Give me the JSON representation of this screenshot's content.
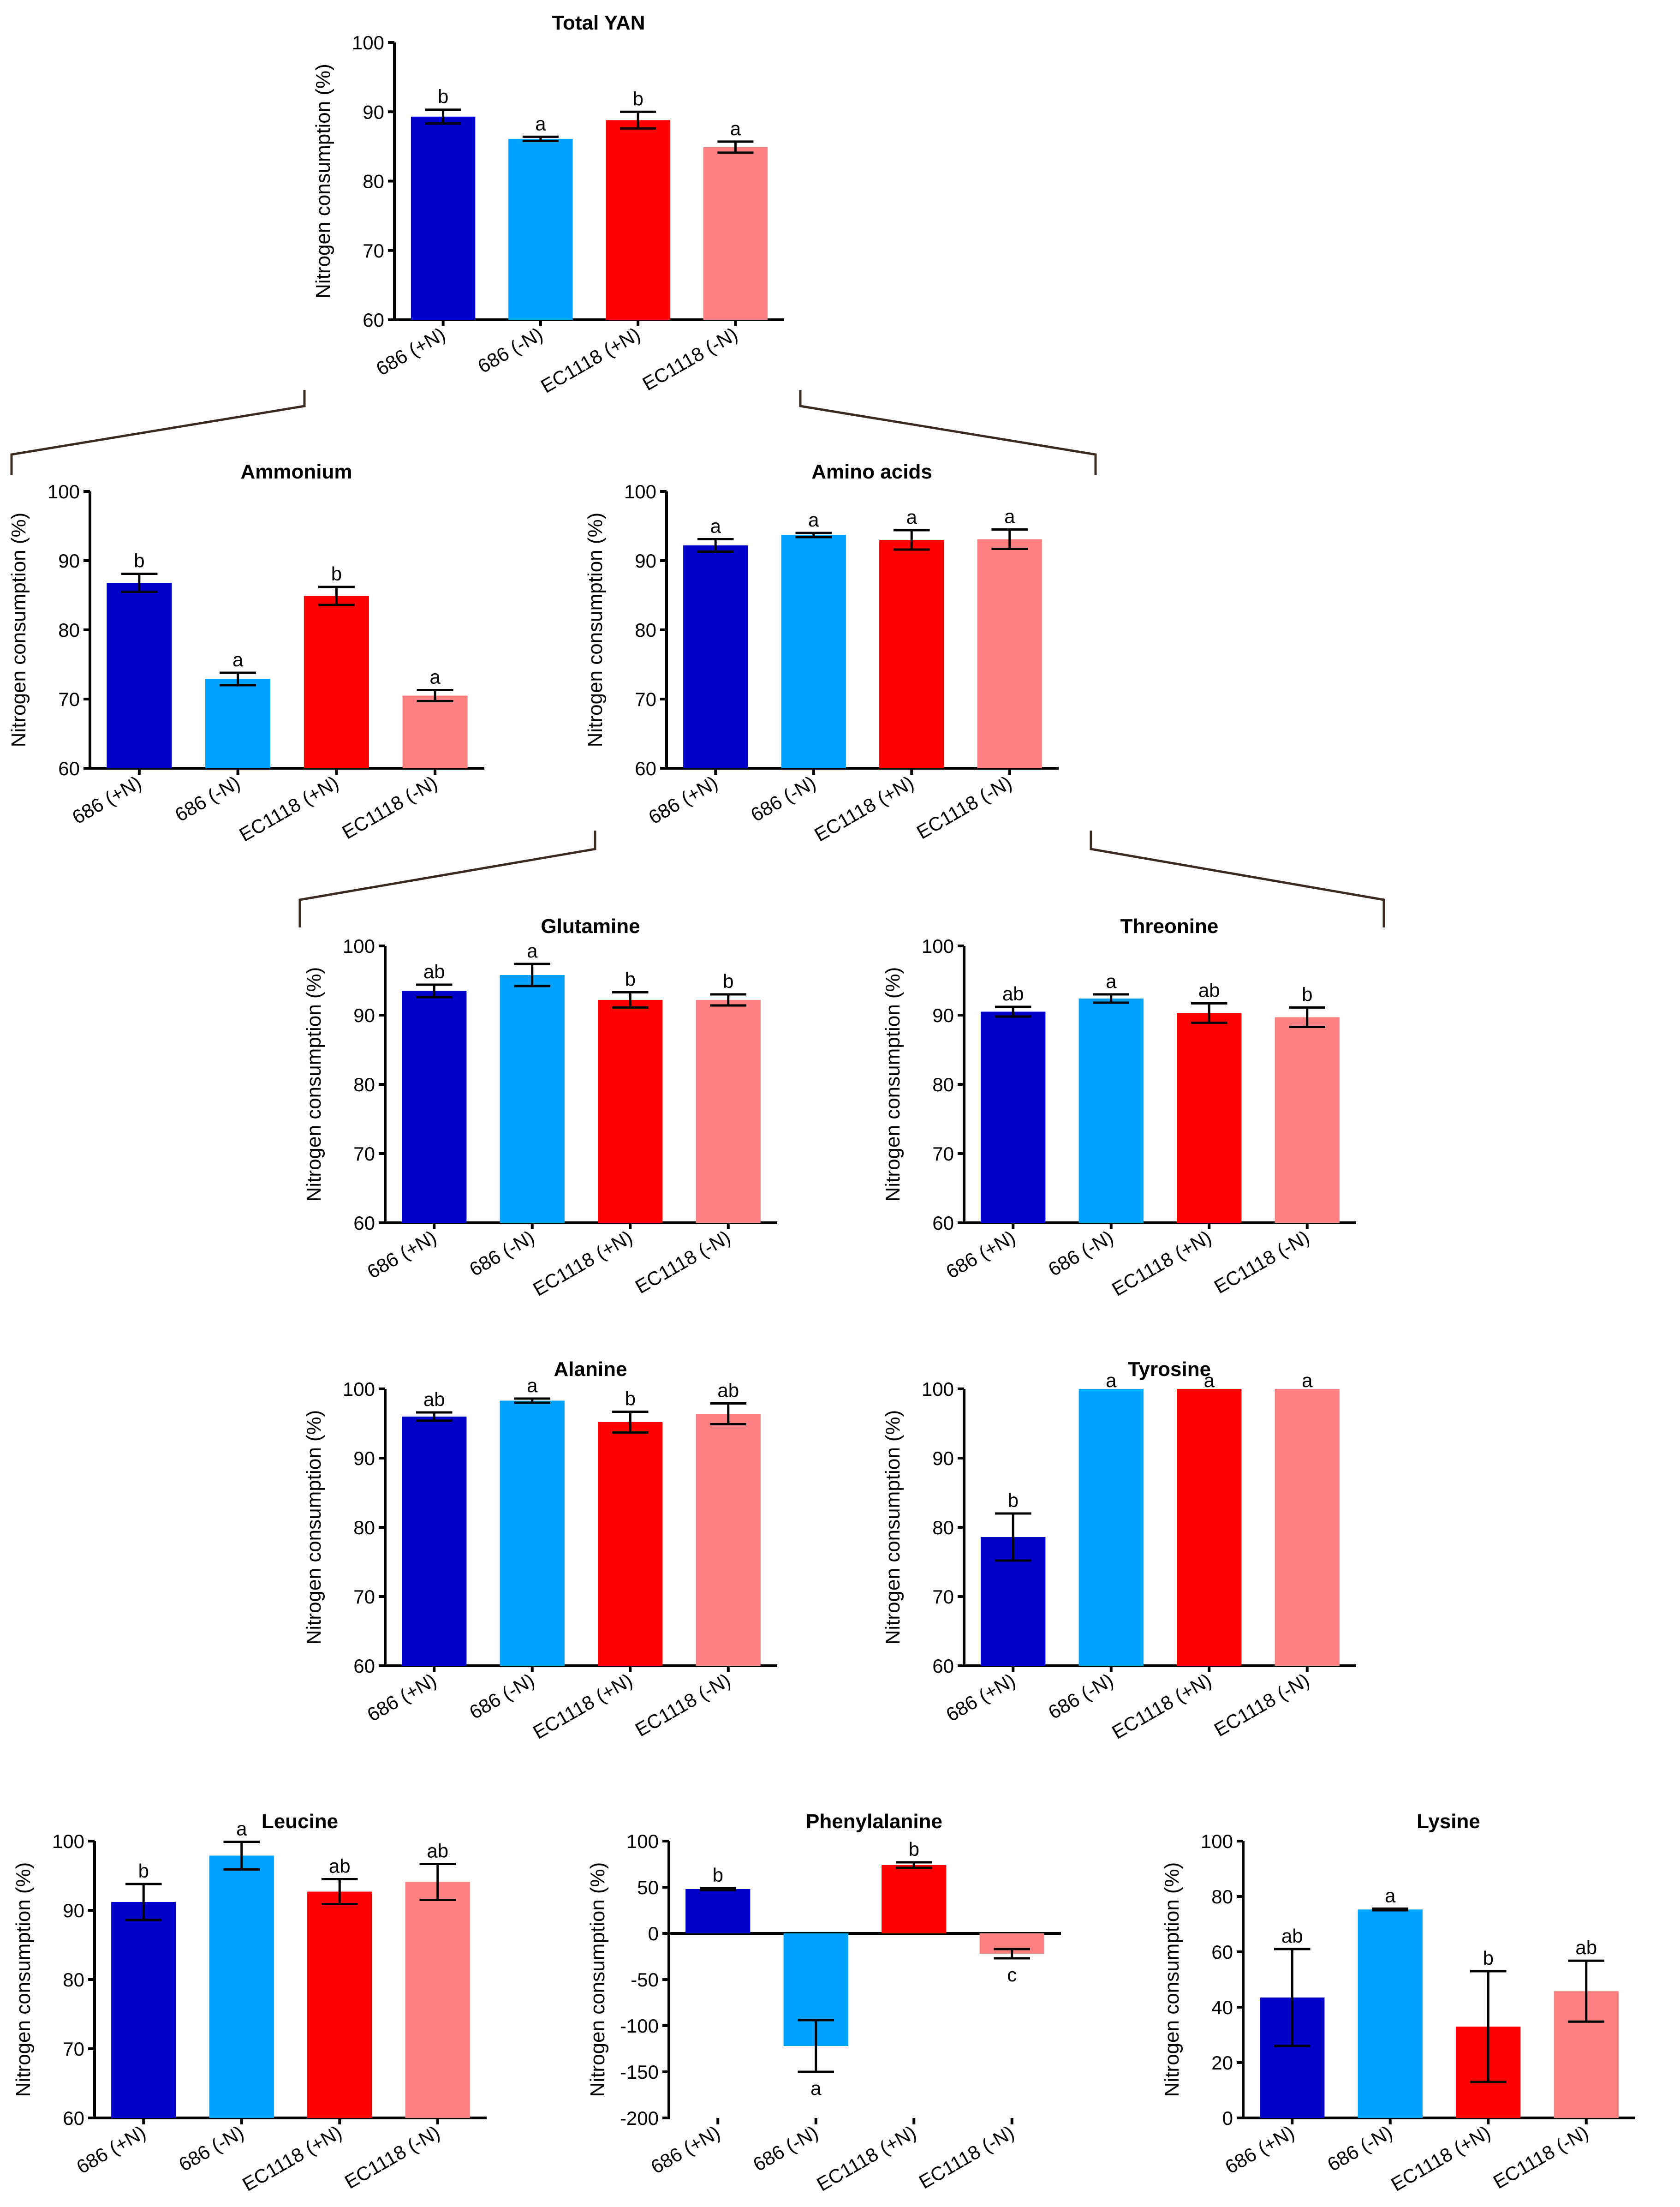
{
  "chart_data": [
    {
      "id": "total_yan",
      "type": "bar",
      "title": "Total YAN",
      "ylabel": "Nitrogen consumption (%)",
      "ylim": [
        60,
        100
      ],
      "yticks": [
        60,
        70,
        80,
        90,
        100
      ],
      "categories": [
        "686 (+N)",
        "686 (-N)",
        "EC1118 (+N)",
        "EC1118 (-N)"
      ],
      "values": [
        89.3,
        86.1,
        88.8,
        84.9
      ],
      "errors": [
        1.0,
        0.3,
        1.2,
        0.8
      ],
      "significance": [
        "b",
        "a",
        "b",
        "a"
      ]
    },
    {
      "id": "ammonium",
      "type": "bar",
      "title": "Ammonium",
      "ylabel": "Nitrogen consumption (%)",
      "ylim": [
        60,
        100
      ],
      "yticks": [
        60,
        70,
        80,
        90,
        100
      ],
      "categories": [
        "686 (+N)",
        "686 (-N)",
        "EC1118 (+N)",
        "EC1118 (-N)"
      ],
      "values": [
        86.8,
        72.9,
        84.9,
        70.5
      ],
      "errors": [
        1.3,
        0.9,
        1.3,
        0.8
      ],
      "significance": [
        "b",
        "a",
        "b",
        "a"
      ]
    },
    {
      "id": "amino_acids",
      "type": "bar",
      "title": "Amino acids",
      "ylabel": "Nitrogen consumption (%)",
      "ylim": [
        60,
        100
      ],
      "yticks": [
        60,
        70,
        80,
        90,
        100
      ],
      "categories": [
        "686 (+N)",
        "686 (-N)",
        "EC1118 (+N)",
        "EC1118 (-N)"
      ],
      "values": [
        92.2,
        93.7,
        93.0,
        93.1
      ],
      "errors": [
        0.9,
        0.3,
        1.4,
        1.4
      ],
      "significance": [
        "a",
        "a",
        "a",
        "a"
      ]
    },
    {
      "id": "glutamine",
      "type": "bar",
      "title": "Glutamine",
      "ylabel": "Nitrogen consumption (%)",
      "ylim": [
        60,
        100
      ],
      "yticks": [
        60,
        70,
        80,
        90,
        100
      ],
      "categories": [
        "686 (+N)",
        "686 (-N)",
        "EC1118 (+N)",
        "EC1118 (-N)"
      ],
      "values": [
        93.5,
        95.8,
        92.2,
        92.2
      ],
      "errors": [
        0.9,
        1.6,
        1.1,
        0.8
      ],
      "significance": [
        "ab",
        "a",
        "b",
        "b"
      ]
    },
    {
      "id": "threonine",
      "type": "bar",
      "title": "Threonine",
      "ylabel": "Nitrogen consumption (%)",
      "ylim": [
        60,
        100
      ],
      "yticks": [
        60,
        70,
        80,
        90,
        100
      ],
      "categories": [
        "686 (+N)",
        "686 (-N)",
        "EC1118 (+N)",
        "EC1118 (-N)"
      ],
      "values": [
        90.5,
        92.4,
        90.3,
        89.7
      ],
      "errors": [
        0.7,
        0.6,
        1.4,
        1.4
      ],
      "significance": [
        "ab",
        "a",
        "ab",
        "b"
      ]
    },
    {
      "id": "alanine",
      "type": "bar",
      "title": "Alanine",
      "ylabel": "Nitrogen consumption (%)",
      "ylim": [
        60,
        100
      ],
      "yticks": [
        60,
        70,
        80,
        90,
        100
      ],
      "categories": [
        "686 (+N)",
        "686 (-N)",
        "EC1118 (+N)",
        "EC1118 (-N)"
      ],
      "values": [
        96.0,
        98.3,
        95.2,
        96.4
      ],
      "errors": [
        0.6,
        0.3,
        1.5,
        1.5
      ],
      "significance": [
        "ab",
        "a",
        "b",
        "ab"
      ]
    },
    {
      "id": "tyrosine",
      "type": "bar",
      "title": "Tyrosine",
      "ylabel": "Nitrogen consumption (%)",
      "ylim": [
        60,
        100
      ],
      "yticks": [
        60,
        70,
        80,
        90,
        100
      ],
      "categories": [
        "686 (+N)",
        "686 (-N)",
        "EC1118 (+N)",
        "EC1118 (-N)"
      ],
      "values": [
        78.6,
        100,
        100,
        100
      ],
      "errors": [
        3.4,
        0,
        0,
        0
      ],
      "significance": [
        "b",
        "a",
        "a",
        "a"
      ]
    },
    {
      "id": "leucine",
      "type": "bar",
      "title": "Leucine",
      "ylabel": "Nitrogen consumption (%)",
      "ylim": [
        60,
        100
      ],
      "yticks": [
        60,
        70,
        80,
        90,
        100
      ],
      "categories": [
        "686 (+N)",
        "686 (-N)",
        "EC1118 (+N)",
        "EC1118 (-N)"
      ],
      "values": [
        91.2,
        97.9,
        92.7,
        94.1
      ],
      "errors": [
        2.6,
        2.0,
        1.8,
        2.6
      ],
      "significance": [
        "b",
        "a",
        "ab",
        "ab"
      ]
    },
    {
      "id": "phenylalanine",
      "type": "bar",
      "title": "Phenylalanine",
      "ylabel": "Nitrogen consumption (%)",
      "ylim": [
        -200,
        100
      ],
      "yticks": [
        -200,
        -150,
        -100,
        -50,
        0,
        50,
        100
      ],
      "categories": [
        "686 (+N)",
        "686 (-N)",
        "EC1118 (+N)",
        "EC1118 (-N)"
      ],
      "values": [
        48,
        -122,
        74,
        -22
      ],
      "errors": [
        1,
        28,
        3,
        5
      ],
      "significance": [
        "b",
        "a",
        "b",
        "c"
      ]
    },
    {
      "id": "lysine",
      "type": "bar",
      "title": "Lysine",
      "ylabel": "Nitrogen consumption (%)",
      "ylim": [
        0,
        100
      ],
      "yticks": [
        0,
        20,
        40,
        60,
        80,
        100
      ],
      "categories": [
        "686 (+N)",
        "686 (-N)",
        "EC1118 (+N)",
        "EC1118 (-N)"
      ],
      "values": [
        43.5,
        75.3,
        33.0,
        45.8
      ],
      "errors": [
        17.5,
        0.3,
        20.0,
        11.0
      ],
      "significance": [
        "ab",
        "a",
        "b",
        "ab"
      ]
    }
  ],
  "colors": [
    "#0000c8",
    "#00a2ff",
    "#ff0000",
    "#ff8080"
  ]
}
